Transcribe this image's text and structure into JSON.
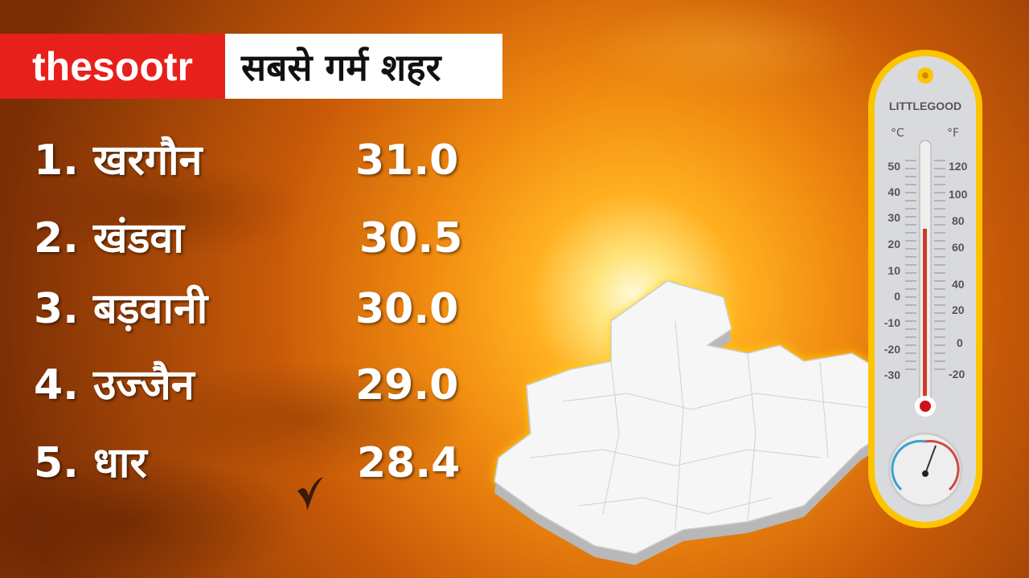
{
  "header": {
    "brand": "thesootr",
    "title": "सबसे गर्म शहर"
  },
  "cities": [
    {
      "rank": "1.",
      "name": "खरगौन",
      "temp": "31.0"
    },
    {
      "rank": "2.",
      "name": "खंडवा",
      "temp": "30.5"
    },
    {
      "rank": "3.",
      "name": "बड़वानी",
      "temp": "30.0"
    },
    {
      "rank": "4.",
      "name": "उज्जैन",
      "temp": "29.0"
    },
    {
      "rank": "5.",
      "name": "धार",
      "temp": "28.4"
    }
  ],
  "thermometer": {
    "brand": "LITTLEGOOD",
    "celsius_unit": "°C",
    "fahrenheit_unit": "°F",
    "celsius_ticks": [
      "50",
      "40",
      "30",
      "20",
      "10",
      "0",
      "-10",
      "-20",
      "-30"
    ],
    "fahrenheit_ticks": [
      "120",
      "100",
      "80",
      "60",
      "40",
      "20",
      "0",
      "-20"
    ]
  },
  "colors": {
    "brand_red": "#e8201c",
    "sky_orange": "#f08a10"
  }
}
